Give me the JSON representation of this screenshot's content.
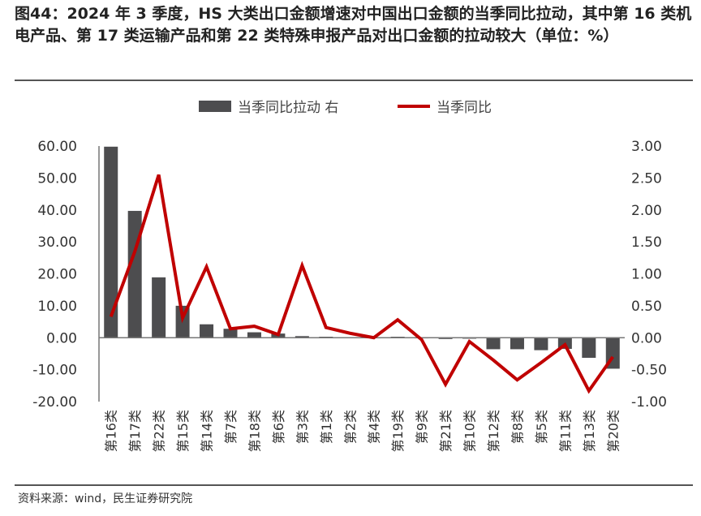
{
  "title": "图44：2024 年 3 季度，HS 大类出口金额增速对中国出口金额的当季同比拉动，其中第 16 类机电产品、第 17 类运输产品和第 22 类特殊申报产品对出口金额的拉动较大（单位：%）",
  "source": "资料来源：wind，民生证券研究院",
  "chart_data": {
    "type": "bar+line",
    "categories": [
      "第16类",
      "第17类",
      "第22类",
      "第15类",
      "第14类",
      "第7类",
      "第18类",
      "第6类",
      "第3类",
      "第1类",
      "第2类",
      "第4类",
      "第19类",
      "第9类",
      "第21类",
      "第10类",
      "第12类",
      "第8类",
      "第5类",
      "第11类",
      "第13类",
      "第20类"
    ],
    "series": [
      {
        "name": "当季同比拉动 右",
        "type": "bar",
        "axis": "left",
        "color": "#4d4d4f",
        "values": [
          59.8,
          39.7,
          18.9,
          10.0,
          4.2,
          2.8,
          1.7,
          1.3,
          0.5,
          0.3,
          0.1,
          0.0,
          0.3,
          -0.1,
          -0.4,
          -0.3,
          -3.6,
          -3.6,
          -3.9,
          -3.5,
          -6.3,
          -9.7
        ]
      },
      {
        "name": "当季同比",
        "type": "line",
        "axis": "right",
        "color": "#c00000",
        "values": [
          0.33,
          1.35,
          2.55,
          0.31,
          1.11,
          0.14,
          0.18,
          0.05,
          1.13,
          0.16,
          0.07,
          0.0,
          0.28,
          -0.03,
          -0.73,
          -0.06,
          -0.35,
          -0.66,
          -0.39,
          -0.11,
          -0.83,
          -0.3
        ]
      }
    ],
    "left_axis": {
      "range": [
        -20,
        60
      ],
      "ticks": [
        "60.00",
        "50.00",
        "40.00",
        "30.00",
        "20.00",
        "10.00",
        "0.00",
        "-10.00",
        "-20.00"
      ]
    },
    "right_axis": {
      "range": [
        -1,
        3
      ],
      "ticks": [
        "3.00",
        "2.50",
        "2.00",
        "1.50",
        "1.00",
        "0.50",
        "0.00",
        "-0.50",
        "-1.00"
      ]
    },
    "legend": "top",
    "grid": false
  }
}
